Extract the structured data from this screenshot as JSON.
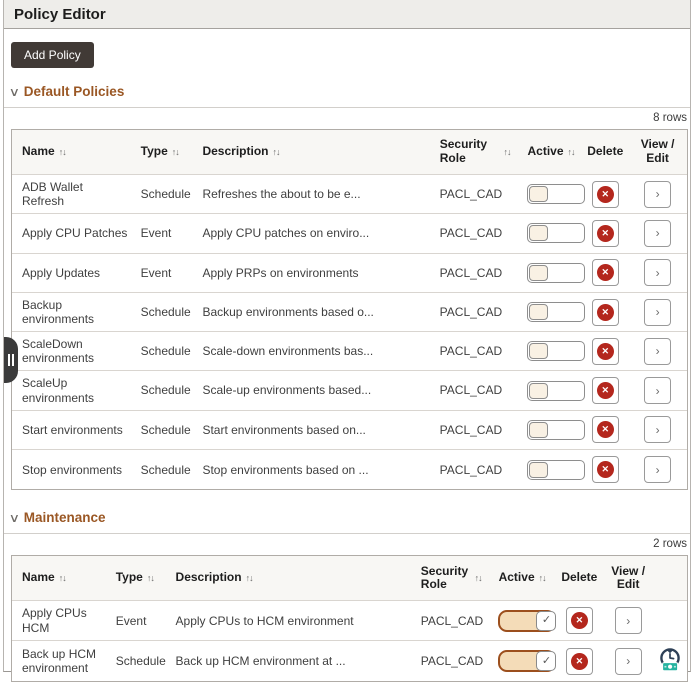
{
  "window": {
    "title": "Policy Editor"
  },
  "toolbar": {
    "add_policy": "Add Policy"
  },
  "icons": {
    "collapse_chevron": "∨",
    "sort": "↑↓",
    "delete_x": "✕",
    "view_edit_chevron": "›",
    "toggle_check": "✓",
    "drag_handle": "pause-bars"
  },
  "colors": {
    "section_title": "#9a5724",
    "active_on_track": "#f4dcb8",
    "active_on_border": "#9c4f1d",
    "delete_red": "#b4271d",
    "dark_button": "#413a36",
    "titlebar_bg": "#eeedea",
    "table_header_bg": "#f8f7f4"
  },
  "sections": [
    {
      "title": "Default Policies",
      "row_count": "8 rows",
      "columns": [
        {
          "label": "Name",
          "sortable": true
        },
        {
          "label": "Type",
          "sortable": true
        },
        {
          "label": "Description",
          "sortable": true
        },
        {
          "label": "Security Role",
          "sortable": true,
          "wrap": true
        },
        {
          "label": "Active",
          "sortable": true
        },
        {
          "label": "Delete",
          "sortable": false,
          "center": true
        },
        {
          "label": "View / Edit",
          "sortable": false,
          "center": true
        }
      ],
      "rows": [
        {
          "name": "ADB Wallet Refresh",
          "type": "Schedule",
          "description": "Refreshes the about to be e...",
          "security_role": "PACL_CAD",
          "active": false
        },
        {
          "name": "Apply CPU Patches",
          "type": "Event",
          "description": "Apply CPU patches on enviro...",
          "security_role": "PACL_CAD",
          "active": false
        },
        {
          "name": "Apply Updates",
          "type": "Event",
          "description": "Apply PRPs on environments",
          "security_role": "PACL_CAD",
          "active": false
        },
        {
          "name": "Backup environments",
          "type": "Schedule",
          "description": "Backup environments based o...",
          "security_role": "PACL_CAD",
          "active": false
        },
        {
          "name": "ScaleDown environments",
          "type": "Schedule",
          "description": "Scale-down environments bas...",
          "security_role": "PACL_CAD",
          "active": false
        },
        {
          "name": "ScaleUp environments",
          "type": "Schedule",
          "description": "Scale-up environments based...",
          "security_role": "PACL_CAD",
          "active": false
        },
        {
          "name": "Start environments",
          "type": "Schedule",
          "description": "Start environments based on...",
          "security_role": "PACL_CAD",
          "active": false
        },
        {
          "name": "Stop environments",
          "type": "Schedule",
          "description": "Stop environments based on ...",
          "security_role": "PACL_CAD",
          "active": false
        }
      ]
    },
    {
      "title": "Maintenance",
      "row_count": "2 rows",
      "columns": [
        {
          "label": "Name",
          "sortable": true
        },
        {
          "label": "Type",
          "sortable": true
        },
        {
          "label": "Description",
          "sortable": true
        },
        {
          "label": "Security Role",
          "sortable": true,
          "wrap": true
        },
        {
          "label": "Active",
          "sortable": true
        },
        {
          "label": "Delete",
          "sortable": false,
          "center": true
        },
        {
          "label": "View / Edit",
          "sortable": false,
          "center": true
        },
        {
          "label": "",
          "sortable": false,
          "center": true
        }
      ],
      "rows": [
        {
          "name": "Apply CPUs HCM",
          "type": "Event",
          "description": "Apply CPUs to HCM environment",
          "security_role": "PACL_CAD",
          "active": true
        },
        {
          "name": "Back up HCM environment",
          "type": "Schedule",
          "description": "Back up HCM environment at ...",
          "security_role": "PACL_CAD",
          "active": true,
          "schedule_icon": true
        }
      ]
    }
  ]
}
